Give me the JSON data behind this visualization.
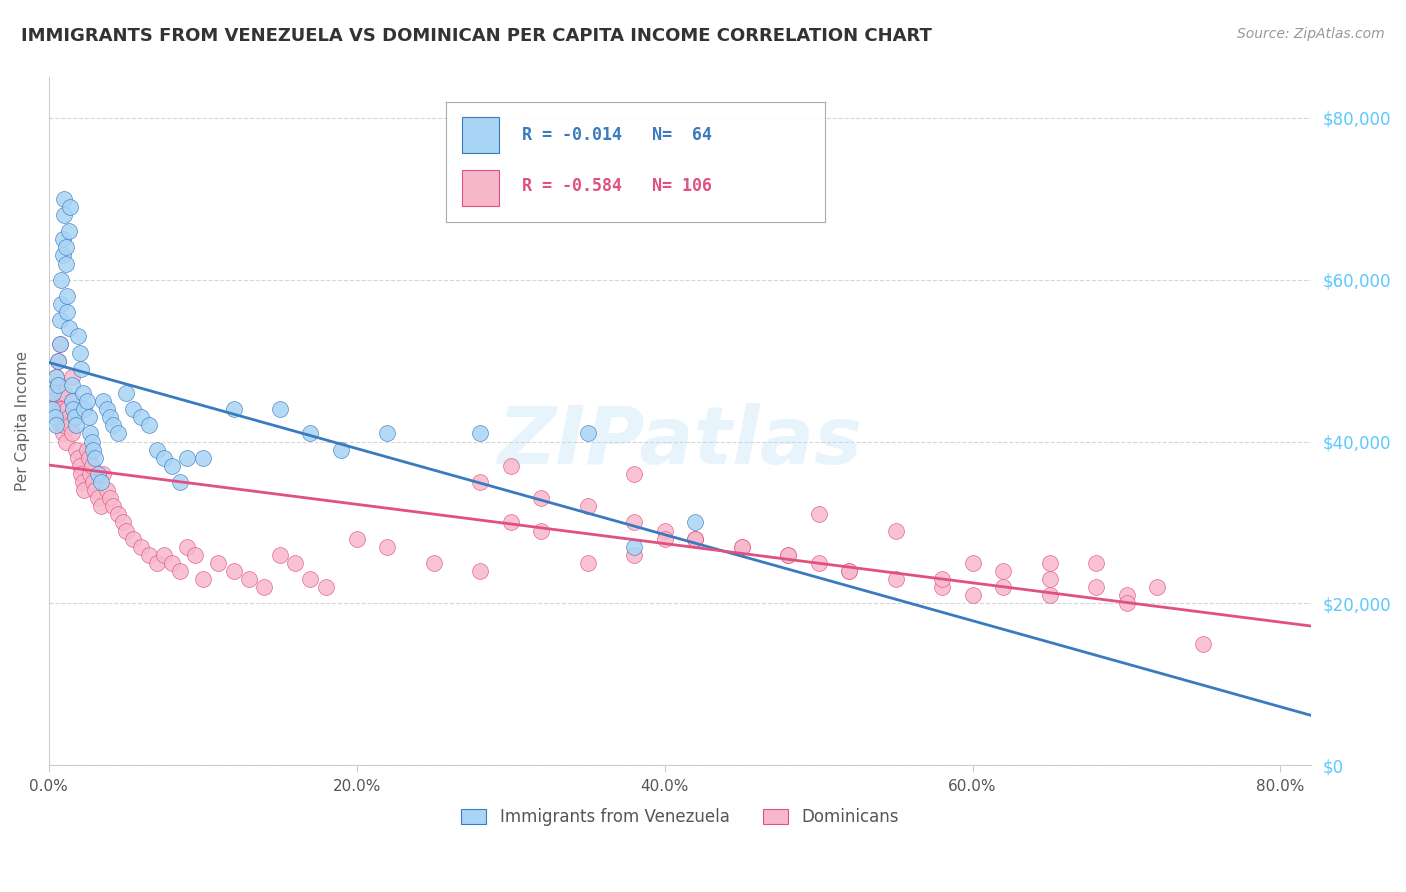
{
  "title": "IMMIGRANTS FROM VENEZUELA VS DOMINICAN PER CAPITA INCOME CORRELATION CHART",
  "source": "Source: ZipAtlas.com",
  "ylabel": "Per Capita Income",
  "watermark": "ZIPatlas",
  "legend_labels": [
    "Immigrants from Venezuela",
    "Dominicans"
  ],
  "R_venezuela": -0.014,
  "N_venezuela": 64,
  "R_dominican": -0.584,
  "N_dominican": 106,
  "color_venezuela": "#a8d4f5",
  "color_dominican": "#f7b8cb",
  "trendline_venezuela": "#3a7abf",
  "trendline_dominican": "#e05080",
  "ytick_labels": [
    "$0",
    "$20,000",
    "$40,000",
    "$60,000",
    "$80,000"
  ],
  "ytick_values": [
    0,
    20000,
    40000,
    60000,
    80000
  ],
  "xtick_labels": [
    "0.0%",
    "20.0%",
    "40.0%",
    "60.0%",
    "80.0%"
  ],
  "xtick_values": [
    0.0,
    0.2,
    0.4,
    0.6,
    0.8
  ],
  "venezuela_x": [
    0.002,
    0.003,
    0.004,
    0.005,
    0.005,
    0.006,
    0.006,
    0.007,
    0.007,
    0.008,
    0.008,
    0.009,
    0.009,
    0.01,
    0.01,
    0.011,
    0.011,
    0.012,
    0.012,
    0.013,
    0.013,
    0.014,
    0.015,
    0.015,
    0.016,
    0.017,
    0.018,
    0.019,
    0.02,
    0.021,
    0.022,
    0.023,
    0.025,
    0.026,
    0.027,
    0.028,
    0.029,
    0.03,
    0.032,
    0.034,
    0.035,
    0.038,
    0.04,
    0.042,
    0.045,
    0.05,
    0.055,
    0.06,
    0.065,
    0.07,
    0.075,
    0.08,
    0.085,
    0.09,
    0.1,
    0.12,
    0.15,
    0.17,
    0.19,
    0.22,
    0.28,
    0.35,
    0.38,
    0.42
  ],
  "venezuela_y": [
    44000,
    46000,
    43000,
    48000,
    42000,
    50000,
    47000,
    52000,
    55000,
    57000,
    60000,
    63000,
    65000,
    68000,
    70000,
    64000,
    62000,
    58000,
    56000,
    54000,
    66000,
    69000,
    47000,
    45000,
    44000,
    43000,
    42000,
    53000,
    51000,
    49000,
    46000,
    44000,
    45000,
    43000,
    41000,
    40000,
    39000,
    38000,
    36000,
    35000,
    45000,
    44000,
    43000,
    42000,
    41000,
    46000,
    44000,
    43000,
    42000,
    39000,
    38000,
    37000,
    35000,
    38000,
    38000,
    44000,
    44000,
    41000,
    39000,
    41000,
    41000,
    41000,
    27000,
    30000
  ],
  "dominican_x": [
    0.002,
    0.003,
    0.004,
    0.005,
    0.005,
    0.006,
    0.006,
    0.007,
    0.007,
    0.008,
    0.008,
    0.009,
    0.009,
    0.01,
    0.01,
    0.011,
    0.012,
    0.013,
    0.014,
    0.015,
    0.015,
    0.016,
    0.017,
    0.018,
    0.019,
    0.02,
    0.021,
    0.022,
    0.023,
    0.025,
    0.026,
    0.027,
    0.028,
    0.029,
    0.03,
    0.032,
    0.034,
    0.035,
    0.038,
    0.04,
    0.042,
    0.045,
    0.048,
    0.05,
    0.055,
    0.06,
    0.065,
    0.07,
    0.075,
    0.08,
    0.085,
    0.09,
    0.095,
    0.1,
    0.11,
    0.12,
    0.13,
    0.14,
    0.15,
    0.16,
    0.17,
    0.18,
    0.2,
    0.22,
    0.25,
    0.28,
    0.3,
    0.32,
    0.35,
    0.38,
    0.4,
    0.42,
    0.45,
    0.48,
    0.5,
    0.52,
    0.55,
    0.58,
    0.6,
    0.62,
    0.65,
    0.68,
    0.7,
    0.72,
    0.35,
    0.4,
    0.45,
    0.5,
    0.55,
    0.3,
    0.28,
    0.32,
    0.38,
    0.42,
    0.48,
    0.52,
    0.58,
    0.62,
    0.65,
    0.68,
    0.42,
    0.38,
    0.6,
    0.65,
    0.7,
    0.75
  ],
  "dominican_y": [
    46000,
    45000,
    44000,
    48000,
    43000,
    50000,
    47000,
    52000,
    46000,
    44000,
    42000,
    43000,
    41000,
    46000,
    42000,
    40000,
    44000,
    43000,
    42000,
    48000,
    41000,
    45000,
    43000,
    39000,
    38000,
    37000,
    36000,
    35000,
    34000,
    39000,
    38000,
    36000,
    37000,
    35000,
    34000,
    33000,
    32000,
    36000,
    34000,
    33000,
    32000,
    31000,
    30000,
    29000,
    28000,
    27000,
    26000,
    25000,
    26000,
    25000,
    24000,
    27000,
    26000,
    23000,
    25000,
    24000,
    23000,
    22000,
    26000,
    25000,
    23000,
    22000,
    28000,
    27000,
    25000,
    24000,
    30000,
    29000,
    25000,
    26000,
    29000,
    28000,
    27000,
    26000,
    25000,
    24000,
    23000,
    22000,
    25000,
    24000,
    23000,
    22000,
    21000,
    22000,
    32000,
    28000,
    27000,
    31000,
    29000,
    37000,
    35000,
    33000,
    30000,
    28000,
    26000,
    24000,
    23000,
    22000,
    21000,
    25000,
    28000,
    36000,
    21000,
    25000,
    20000,
    15000
  ],
  "background_color": "#ffffff",
  "grid_color": "#cccccc",
  "ytick_color": "#5bc8ff",
  "title_color": "#333333",
  "axis_label_color": "#666666"
}
